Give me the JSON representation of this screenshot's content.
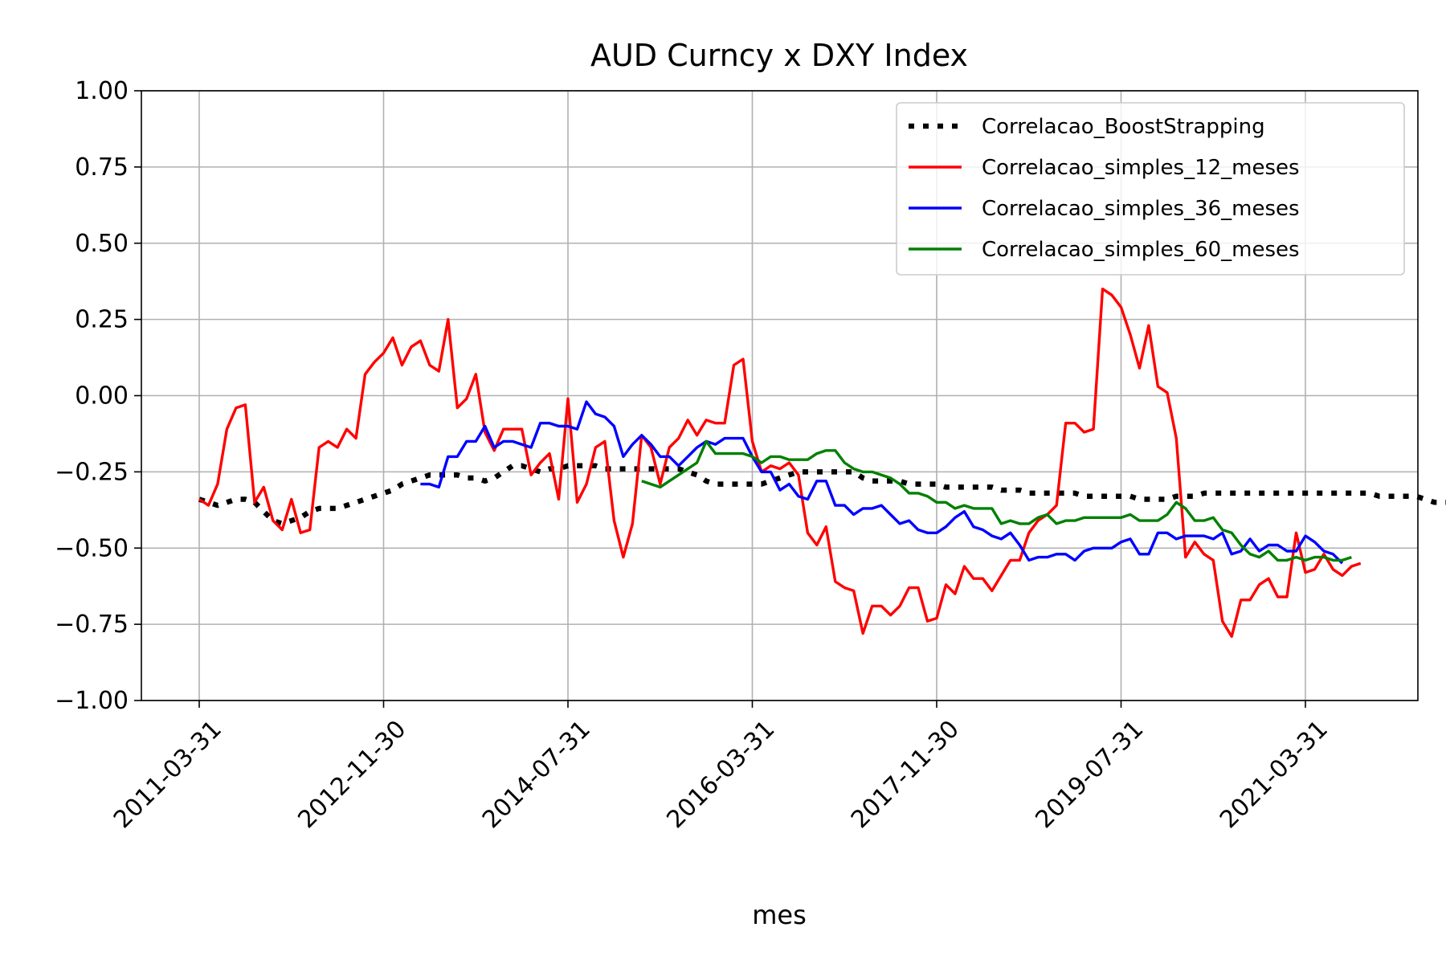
{
  "chart_data": {
    "type": "line",
    "title": "AUD Curncy x DXY Index",
    "xlabel": "mes",
    "ylabel": "",
    "ylim": [
      -1.0,
      1.0
    ],
    "yticks": [
      "1.00",
      "0.75",
      "0.50",
      "0.25",
      "0.00",
      "−0.25",
      "−0.50",
      "−0.75",
      "−1.00"
    ],
    "ytick_values": [
      1.0,
      0.75,
      0.5,
      0.25,
      0.0,
      -0.25,
      -0.5,
      -0.75,
      -1.0
    ],
    "xticks": [
      "2011-03-31",
      "2012-11-30",
      "2014-07-31",
      "2016-03-31",
      "2017-11-30",
      "2019-07-31",
      "2021-03-31"
    ],
    "xtick_dates": [
      "2011-03",
      "2012-11",
      "2014-07",
      "2016-03",
      "2017-11",
      "2019-07",
      "2021-03"
    ],
    "grid": true,
    "legend_position": "top-right",
    "series": [
      {
        "name": "Correlacao_BoostStrapping",
        "color": "#000000",
        "style": "dotted",
        "start": "2011-03",
        "values": [
          -0.34,
          -0.35,
          -0.36,
          -0.35,
          -0.34,
          -0.34,
          -0.35,
          -0.38,
          -0.41,
          -0.42,
          -0.41,
          -0.4,
          -0.38,
          -0.37,
          -0.37,
          -0.37,
          -0.36,
          -0.35,
          -0.34,
          -0.33,
          -0.32,
          -0.31,
          -0.29,
          -0.28,
          -0.27,
          -0.26,
          -0.26,
          -0.26,
          -0.26,
          -0.27,
          -0.27,
          -0.28,
          -0.27,
          -0.25,
          -0.23,
          -0.23,
          -0.24,
          -0.25,
          -0.24,
          -0.24,
          -0.23,
          -0.23,
          -0.23,
          -0.23,
          -0.24,
          -0.24,
          -0.24,
          -0.24,
          -0.24,
          -0.24,
          -0.24,
          -0.24,
          -0.24,
          -0.25,
          -0.26,
          -0.28,
          -0.29,
          -0.29,
          -0.29,
          -0.29,
          -0.29,
          -0.29,
          -0.28,
          -0.27,
          -0.26,
          -0.25,
          -0.25,
          -0.25,
          -0.25,
          -0.25,
          -0.25,
          -0.25,
          -0.27,
          -0.28,
          -0.28,
          -0.28,
          -0.28,
          -0.29,
          -0.29,
          -0.29,
          -0.29,
          -0.3,
          -0.3,
          -0.3,
          -0.3,
          -0.3,
          -0.3,
          -0.31,
          -0.31,
          -0.31,
          -0.32,
          -0.32,
          -0.32,
          -0.32,
          -0.32,
          -0.32,
          -0.33,
          -0.33,
          -0.33,
          -0.33,
          -0.33,
          -0.33,
          -0.34,
          -0.34,
          -0.34,
          -0.34,
          -0.33,
          -0.33,
          -0.33,
          -0.32,
          -0.32,
          -0.32,
          -0.32,
          -0.32,
          -0.32,
          -0.32,
          -0.32,
          -0.32,
          -0.32,
          -0.32,
          -0.32,
          -0.32,
          -0.32,
          -0.32,
          -0.32,
          -0.32,
          -0.32,
          -0.32,
          -0.33,
          -0.33,
          -0.33,
          -0.33,
          -0.33,
          -0.34,
          -0.35,
          -0.35,
          -0.35,
          -0.35,
          -0.35,
          -0.35,
          -0.36,
          -0.36,
          -0.36,
          -0.36,
          -0.36,
          -0.36,
          -0.36,
          -0.36,
          -0.36,
          -0.36,
          -0.36,
          -0.36,
          -0.36,
          -0.36,
          -0.36
        ]
      },
      {
        "name": "Correlacao_simples_12_meses",
        "color": "#ff0000",
        "style": "solid",
        "start": "2011-03",
        "values": [
          -0.34,
          -0.36,
          -0.29,
          -0.11,
          -0.04,
          -0.03,
          -0.35,
          -0.3,
          -0.41,
          -0.44,
          -0.34,
          -0.45,
          -0.44,
          -0.17,
          -0.15,
          -0.17,
          -0.11,
          -0.14,
          0.07,
          0.11,
          0.14,
          0.19,
          0.1,
          0.16,
          0.18,
          0.1,
          0.08,
          0.25,
          -0.04,
          -0.01,
          0.07,
          -0.12,
          -0.18,
          -0.11,
          -0.11,
          -0.11,
          -0.26,
          -0.22,
          -0.19,
          -0.34,
          -0.01,
          -0.35,
          -0.29,
          -0.17,
          -0.15,
          -0.41,
          -0.53,
          -0.42,
          -0.13,
          -0.17,
          -0.29,
          -0.17,
          -0.14,
          -0.08,
          -0.13,
          -0.08,
          -0.09,
          -0.09,
          0.1,
          0.12,
          -0.15,
          -0.25,
          -0.23,
          -0.24,
          -0.22,
          -0.26,
          -0.45,
          -0.49,
          -0.43,
          -0.61,
          -0.63,
          -0.64,
          -0.78,
          -0.69,
          -0.69,
          -0.72,
          -0.69,
          -0.63,
          -0.63,
          -0.74,
          -0.73,
          -0.62,
          -0.65,
          -0.56,
          -0.6,
          -0.6,
          -0.64,
          -0.59,
          -0.54,
          -0.54,
          -0.45,
          -0.41,
          -0.39,
          -0.36,
          -0.09,
          -0.09,
          -0.12,
          -0.11,
          0.35,
          0.33,
          0.29,
          0.2,
          0.09,
          0.23,
          0.03,
          0.01,
          -0.14,
          -0.53,
          -0.48,
          -0.52,
          -0.54,
          -0.74,
          -0.79,
          -0.67,
          -0.67,
          -0.62,
          -0.6,
          -0.66,
          -0.66,
          -0.45,
          -0.58,
          -0.57,
          -0.52,
          -0.57,
          -0.59,
          -0.56,
          -0.55
        ]
      },
      {
        "name": "Correlacao_simples_36_meses",
        "color": "#0000ff",
        "style": "solid",
        "start": "2013-03",
        "values": [
          -0.29,
          -0.29,
          -0.3,
          -0.2,
          -0.2,
          -0.15,
          -0.15,
          -0.1,
          -0.17,
          -0.15,
          -0.15,
          -0.16,
          -0.17,
          -0.09,
          -0.09,
          -0.1,
          -0.1,
          -0.11,
          -0.02,
          -0.06,
          -0.07,
          -0.1,
          -0.2,
          -0.16,
          -0.13,
          -0.16,
          -0.2,
          -0.2,
          -0.23,
          -0.2,
          -0.17,
          -0.15,
          -0.16,
          -0.14,
          -0.14,
          -0.14,
          -0.2,
          -0.25,
          -0.25,
          -0.31,
          -0.29,
          -0.33,
          -0.34,
          -0.28,
          -0.28,
          -0.36,
          -0.36,
          -0.39,
          -0.37,
          -0.37,
          -0.36,
          -0.39,
          -0.42,
          -0.41,
          -0.44,
          -0.45,
          -0.45,
          -0.43,
          -0.4,
          -0.38,
          -0.43,
          -0.44,
          -0.46,
          -0.47,
          -0.45,
          -0.49,
          -0.54,
          -0.53,
          -0.53,
          -0.52,
          -0.52,
          -0.54,
          -0.51,
          -0.5,
          -0.5,
          -0.5,
          -0.48,
          -0.47,
          -0.52,
          -0.52,
          -0.45,
          -0.45,
          -0.47,
          -0.46,
          -0.46,
          -0.46,
          -0.47,
          -0.45,
          -0.52,
          -0.51,
          -0.47,
          -0.51,
          -0.49,
          -0.49,
          -0.51,
          -0.51,
          -0.46,
          -0.48,
          -0.51,
          -0.52,
          -0.55
        ]
      },
      {
        "name": "Correlacao_simples_60_meses",
        "color": "#008000",
        "style": "solid",
        "start": "2015-03",
        "values": [
          -0.28,
          -0.29,
          -0.3,
          -0.28,
          -0.26,
          -0.24,
          -0.22,
          -0.15,
          -0.19,
          -0.19,
          -0.19,
          -0.19,
          -0.2,
          -0.22,
          -0.2,
          -0.2,
          -0.21,
          -0.21,
          -0.21,
          -0.19,
          -0.18,
          -0.18,
          -0.22,
          -0.24,
          -0.25,
          -0.25,
          -0.26,
          -0.27,
          -0.29,
          -0.32,
          -0.32,
          -0.33,
          -0.35,
          -0.35,
          -0.37,
          -0.36,
          -0.37,
          -0.37,
          -0.37,
          -0.42,
          -0.41,
          -0.42,
          -0.42,
          -0.4,
          -0.39,
          -0.42,
          -0.41,
          -0.41,
          -0.4,
          -0.4,
          -0.4,
          -0.4,
          -0.4,
          -0.39,
          -0.41,
          -0.41,
          -0.41,
          -0.39,
          -0.35,
          -0.37,
          -0.41,
          -0.41,
          -0.4,
          -0.44,
          -0.45,
          -0.49,
          -0.52,
          -0.53,
          -0.51,
          -0.54,
          -0.54,
          -0.53,
          -0.54,
          -0.53,
          -0.53,
          -0.54,
          -0.54,
          -0.53
        ]
      }
    ]
  }
}
